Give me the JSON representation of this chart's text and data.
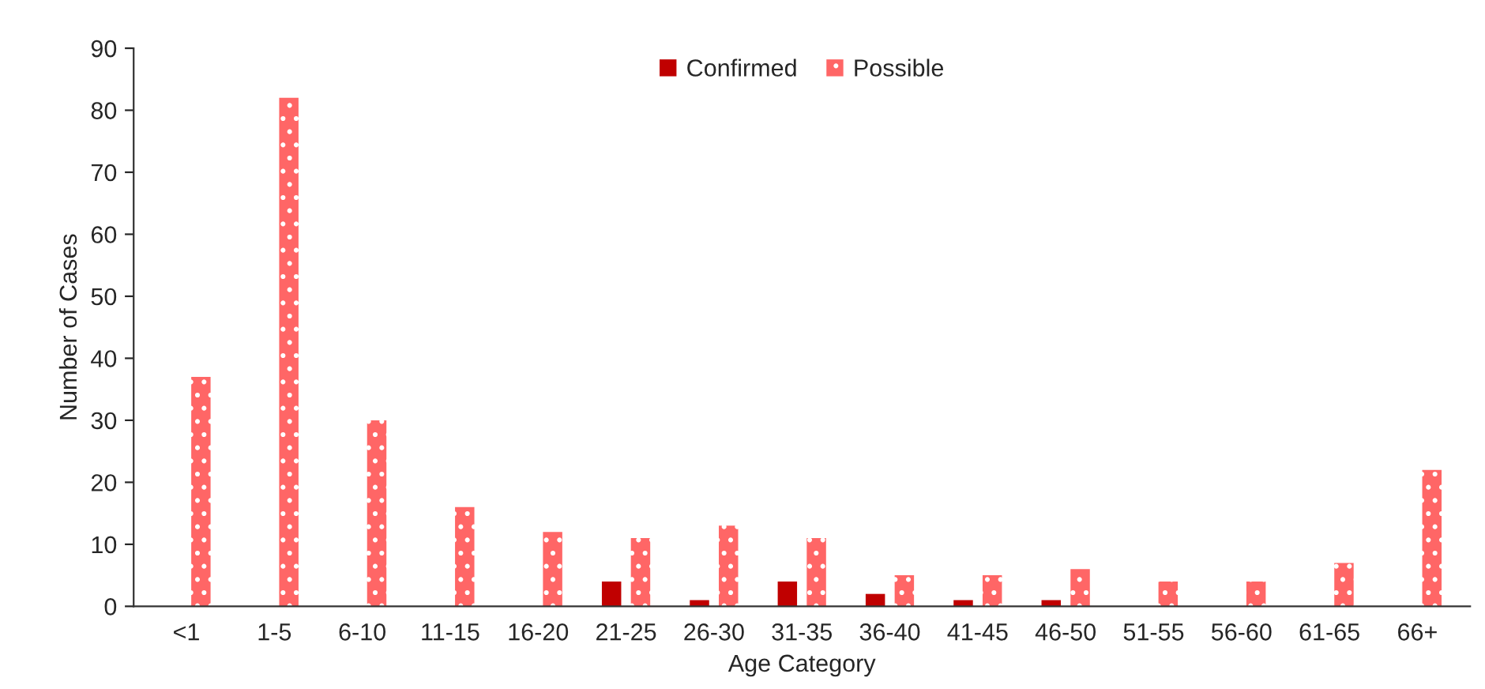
{
  "chart_data": {
    "type": "bar",
    "xlabel": "Age Category",
    "ylabel": "Number of Cases",
    "categories": [
      "<1",
      "1-5",
      "6-10",
      "11-15",
      "16-20",
      "21-25",
      "26-30",
      "31-35",
      "36-40",
      "41-45",
      "46-50",
      "51-55",
      "56-60",
      "61-65",
      "66+"
    ],
    "series": [
      {
        "name": "Confirmed",
        "color": "#c00000",
        "values": [
          0,
          0,
          0,
          0,
          0,
          4,
          1,
          4,
          2,
          1,
          1,
          0,
          0,
          0,
          0
        ]
      },
      {
        "name": "Possible",
        "color": "#ff6666",
        "values": [
          37,
          82,
          30,
          16,
          12,
          11,
          13,
          11,
          5,
          5,
          6,
          4,
          4,
          7,
          22
        ]
      }
    ],
    "ylim": [
      0,
      90
    ],
    "yticks": [
      0,
      10,
      20,
      30,
      40,
      50,
      60,
      70,
      80,
      90
    ],
    "grid": false,
    "legend": "top"
  }
}
